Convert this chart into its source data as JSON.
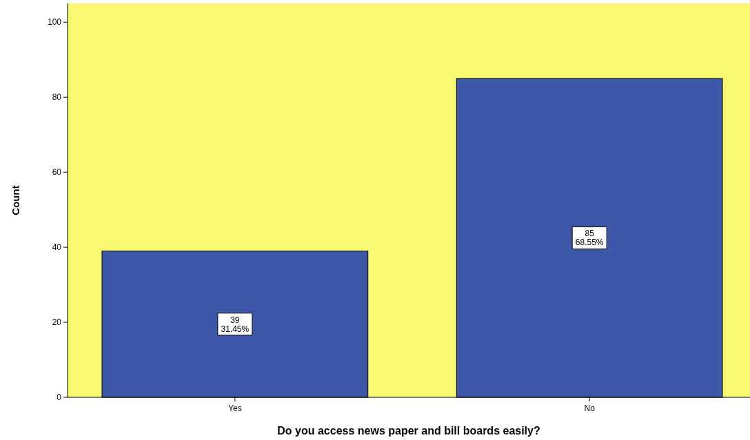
{
  "chart_data": {
    "type": "bar",
    "xlabel": "Do you access news paper and bill boards easily?",
    "ylabel": "Count",
    "categories": [
      "Yes",
      "No"
    ],
    "values": [
      39,
      85
    ],
    "color": "#3e58a9",
    "value_labels": [
      "39\n31.45%",
      "85\n68.55%"
    ],
    "ylim": [
      0,
      105
    ],
    "yticks": [
      0,
      20,
      40,
      60,
      80,
      100
    ],
    "grid": false
  }
}
